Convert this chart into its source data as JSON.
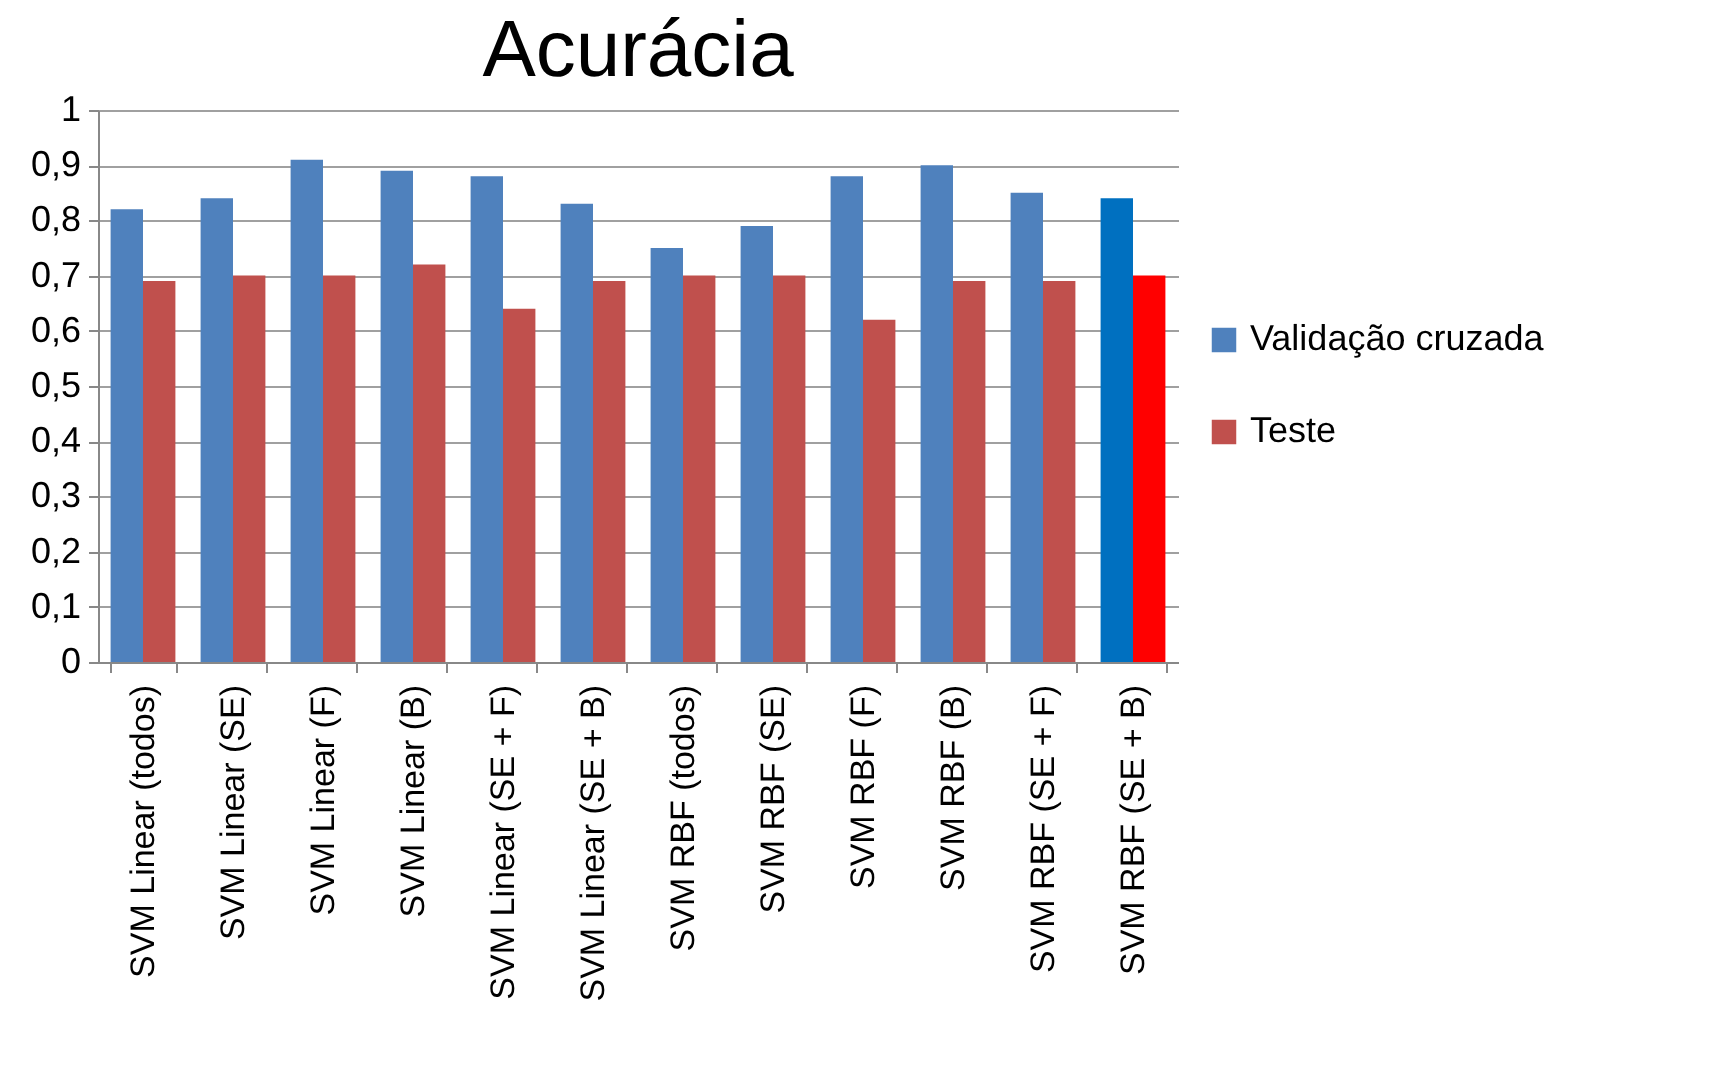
{
  "chart_data": {
    "type": "bar",
    "title": "Acurácia",
    "categories": [
      "SVM Linear (todos)",
      "SVM Linear (SE)",
      "SVM Linear (F)",
      "SVM Linear (B)",
      "SVM Linear (SE + F)",
      "SVM Linear (SE + B)",
      "SVM RBF (todos)",
      "SVM RBF (SE)",
      "SVM RBF (F)",
      "SVM RBF (B)",
      "SVM RBF (SE + F)",
      "SVM RBF (SE + B)"
    ],
    "series": [
      {
        "name": "Validação cruzada",
        "color": "#4f81bd",
        "colors": [
          "#4f81bd",
          "#4f81bd",
          "#4f81bd",
          "#4f81bd",
          "#4f81bd",
          "#4f81bd",
          "#4f81bd",
          "#4f81bd",
          "#4f81bd",
          "#4f81bd",
          "#4f81bd",
          "#0070c0"
        ],
        "values": [
          0.82,
          0.84,
          0.91,
          0.89,
          0.88,
          0.83,
          0.75,
          0.79,
          0.88,
          0.9,
          0.85,
          0.84
        ]
      },
      {
        "name": "Teste",
        "color": "#c0504d",
        "colors": [
          "#c0504d",
          "#c0504d",
          "#c0504d",
          "#c0504d",
          "#c0504d",
          "#c0504d",
          "#c0504d",
          "#c0504d",
          "#c0504d",
          "#c0504d",
          "#c0504d",
          "#ff0000"
        ],
        "values": [
          0.69,
          0.7,
          0.7,
          0.72,
          0.64,
          0.69,
          0.7,
          0.7,
          0.62,
          0.69,
          0.69,
          0.7
        ]
      }
    ],
    "ylim": [
      0,
      1
    ],
    "yticks": [
      {
        "value": 0,
        "label": "0"
      },
      {
        "value": 0.1,
        "label": "0,1"
      },
      {
        "value": 0.2,
        "label": "0,2"
      },
      {
        "value": 0.3,
        "label": "0,3"
      },
      {
        "value": 0.4,
        "label": "0,4"
      },
      {
        "value": 0.5,
        "label": "0,5"
      },
      {
        "value": 0.6,
        "label": "0,6"
      },
      {
        "value": 0.7,
        "label": "0,7"
      },
      {
        "value": 0.8,
        "label": "0,8"
      },
      {
        "value": 0.9,
        "label": "0,9"
      },
      {
        "value": 1,
        "label": "1"
      }
    ],
    "grid": "y",
    "legend": "right"
  }
}
